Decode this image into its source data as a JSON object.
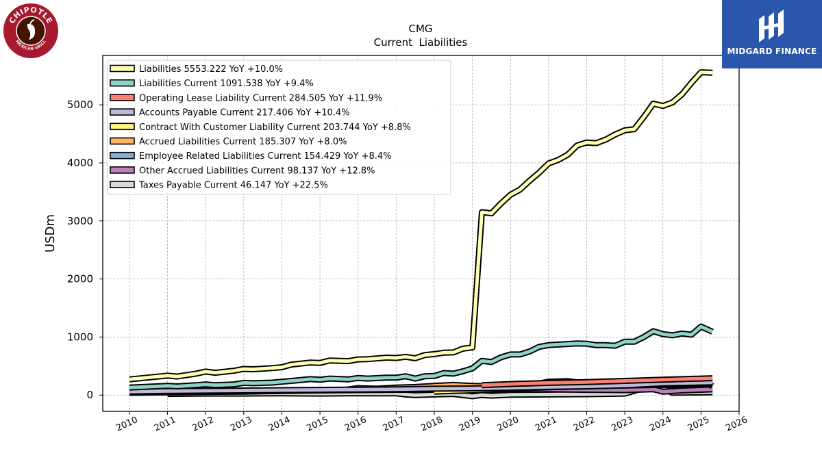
{
  "brands": {
    "left_logo_text": "CHIPOTLE",
    "left_logo_subtext": "MEXICAN GRILL",
    "right_logo_text": "MIDGARD FINANCE"
  },
  "colors": {
    "liabilities": "#ffffb3",
    "liabilities_current": "#8dd3c7",
    "operating_lease": "#fb8072",
    "accounts_payable": "#bebada",
    "contract_with_customer": "#fff57a",
    "accrued_liabilities": "#fdb462",
    "employee_related": "#80b1d3",
    "other_accrued": "#bc80bd",
    "taxes_payable": "#d9d9d9",
    "brand_blue": "#2a56ac",
    "chipotle_red": "#a6192e"
  },
  "chart_data": {
    "type": "line",
    "title": "CMG",
    "subtitle": "Current  Liabilities",
    "xlabel": "",
    "ylabel": "USDm",
    "xlim": [
      2009.3,
      2026.0
    ],
    "ylim": [
      -280,
      5850
    ],
    "x_ticks": [
      2010,
      2011,
      2012,
      2013,
      2014,
      2015,
      2016,
      2017,
      2018,
      2019,
      2020,
      2021,
      2022,
      2023,
      2024,
      2025,
      2026
    ],
    "y_ticks": [
      0,
      1000,
      2000,
      3000,
      4000,
      5000
    ],
    "grid": true,
    "legend_position": "top-left",
    "series": [
      {
        "name": "Liabilities",
        "legend": "Liabilities  5553.222 YoY +10.0%",
        "color_key": "liabilities",
        "points": [
          [
            2010.0,
            270
          ],
          [
            2011.0,
            335
          ],
          [
            2011.25,
            320
          ],
          [
            2011.75,
            370
          ],
          [
            2012.0,
            405
          ],
          [
            2012.25,
            385
          ],
          [
            2012.75,
            420
          ],
          [
            2013.0,
            450
          ],
          [
            2013.25,
            445
          ],
          [
            2013.75,
            465
          ],
          [
            2014.0,
            480
          ],
          [
            2014.25,
            525
          ],
          [
            2014.75,
            560
          ],
          [
            2015.0,
            555
          ],
          [
            2015.25,
            595
          ],
          [
            2015.75,
            585
          ],
          [
            2016.0,
            615
          ],
          [
            2016.25,
            620
          ],
          [
            2016.75,
            645
          ],
          [
            2017.0,
            640
          ],
          [
            2017.25,
            660
          ],
          [
            2017.5,
            635
          ],
          [
            2017.75,
            690
          ],
          [
            2018.0,
            705
          ],
          [
            2018.25,
            730
          ],
          [
            2018.5,
            735
          ],
          [
            2018.75,
            800
          ],
          [
            2019.0,
            820
          ],
          [
            2019.25,
            3150
          ],
          [
            2019.5,
            3130
          ],
          [
            2019.75,
            3300
          ],
          [
            2020.0,
            3450
          ],
          [
            2020.25,
            3540
          ],
          [
            2020.5,
            3690
          ],
          [
            2020.75,
            3830
          ],
          [
            2021.0,
            3990
          ],
          [
            2021.25,
            4050
          ],
          [
            2021.5,
            4140
          ],
          [
            2021.75,
            4300
          ],
          [
            2022.0,
            4350
          ],
          [
            2022.25,
            4340
          ],
          [
            2022.5,
            4400
          ],
          [
            2022.75,
            4490
          ],
          [
            2023.0,
            4560
          ],
          [
            2023.25,
            4580
          ],
          [
            2023.5,
            4790
          ],
          [
            2023.75,
            5020
          ],
          [
            2024.0,
            4980
          ],
          [
            2024.25,
            5040
          ],
          [
            2024.5,
            5180
          ],
          [
            2024.75,
            5380
          ],
          [
            2025.0,
            5560
          ],
          [
            2025.3,
            5553
          ]
        ]
      },
      {
        "name": "Liabilities Current",
        "legend": "Liabilities Current  1091.538 YoY +9.4%",
        "color_key": "liabilities_current",
        "points": [
          [
            2010.0,
            130
          ],
          [
            2011.0,
            160
          ],
          [
            2011.25,
            150
          ],
          [
            2011.75,
            170
          ],
          [
            2012.0,
            185
          ],
          [
            2012.25,
            170
          ],
          [
            2012.75,
            185
          ],
          [
            2013.0,
            210
          ],
          [
            2013.25,
            205
          ],
          [
            2013.75,
            215
          ],
          [
            2014.0,
            230
          ],
          [
            2014.25,
            245
          ],
          [
            2014.75,
            275
          ],
          [
            2015.0,
            265
          ],
          [
            2015.25,
            285
          ],
          [
            2015.75,
            270
          ],
          [
            2016.0,
            295
          ],
          [
            2016.25,
            285
          ],
          [
            2016.75,
            300
          ],
          [
            2017.0,
            300
          ],
          [
            2017.25,
            325
          ],
          [
            2017.5,
            285
          ],
          [
            2017.75,
            325
          ],
          [
            2018.0,
            330
          ],
          [
            2018.25,
            380
          ],
          [
            2018.5,
            370
          ],
          [
            2018.75,
            410
          ],
          [
            2019.0,
            460
          ],
          [
            2019.25,
            590
          ],
          [
            2019.5,
            570
          ],
          [
            2019.75,
            650
          ],
          [
            2020.0,
            700
          ],
          [
            2020.25,
            700
          ],
          [
            2020.5,
            750
          ],
          [
            2020.75,
            830
          ],
          [
            2021.0,
            860
          ],
          [
            2021.25,
            870
          ],
          [
            2021.5,
            880
          ],
          [
            2021.75,
            890
          ],
          [
            2022.0,
            885
          ],
          [
            2022.25,
            860
          ],
          [
            2022.5,
            860
          ],
          [
            2022.75,
            850
          ],
          [
            2023.0,
            920
          ],
          [
            2023.25,
            920
          ],
          [
            2023.5,
            1000
          ],
          [
            2023.75,
            1100
          ],
          [
            2024.0,
            1050
          ],
          [
            2024.25,
            1030
          ],
          [
            2024.5,
            1060
          ],
          [
            2024.75,
            1040
          ],
          [
            2025.0,
            1180
          ],
          [
            2025.3,
            1091
          ]
        ]
      },
      {
        "name": "Operating Lease Liability Current",
        "legend": "Operating Lease Liability Current  284.505 YoY +11.9%",
        "color_key": "operating_lease",
        "points": [
          [
            2019.25,
            170
          ],
          [
            2020.0,
            190
          ],
          [
            2021.0,
            210
          ],
          [
            2022.0,
            225
          ],
          [
            2023.0,
            245
          ],
          [
            2024.0,
            265
          ],
          [
            2025.3,
            290
          ]
        ]
      },
      {
        "name": "Accounts Payable Current",
        "legend": "Accounts Payable Current  217.406 YoY +10.4%",
        "color_key": "accounts_payable",
        "points": [
          [
            2010.0,
            60
          ],
          [
            2011.0,
            70
          ],
          [
            2012.0,
            75
          ],
          [
            2013.0,
            80
          ],
          [
            2014.0,
            85
          ],
          [
            2015.0,
            90
          ],
          [
            2016.0,
            95
          ],
          [
            2017.0,
            100
          ],
          [
            2018.0,
            110
          ],
          [
            2019.0,
            115
          ],
          [
            2020.0,
            125
          ],
          [
            2021.0,
            140
          ],
          [
            2022.0,
            150
          ],
          [
            2023.0,
            165
          ],
          [
            2024.0,
            200
          ],
          [
            2025.3,
            217
          ]
        ]
      },
      {
        "name": "Contract With Customer Liability Current",
        "legend": "Contract With Customer Liability Current  203.744 YoY +8.8%",
        "color_key": "contract_with_customer",
        "points": [
          [
            2018.0,
            60
          ],
          [
            2018.5,
            70
          ],
          [
            2019.0,
            80
          ],
          [
            2020.0,
            110
          ],
          [
            2021.0,
            135
          ],
          [
            2022.0,
            150
          ],
          [
            2023.0,
            170
          ],
          [
            2024.0,
            190
          ],
          [
            2025.3,
            204
          ]
        ]
      },
      {
        "name": "Accrued Liabilities Current",
        "legend": "Accrued Liabilities Current  185.307 YoY +8.0%",
        "color_key": "accrued_liabilities",
        "points": [
          [
            2015.75,
            100
          ],
          [
            2016.0,
            120
          ],
          [
            2016.5,
            110
          ],
          [
            2017.0,
            130
          ],
          [
            2017.5,
            140
          ],
          [
            2018.0,
            160
          ],
          [
            2018.5,
            175
          ],
          [
            2019.0,
            160
          ],
          [
            2019.5,
            150
          ],
          [
            2020.0,
            140
          ],
          [
            2021.0,
            150
          ],
          [
            2022.0,
            155
          ],
          [
            2023.0,
            165
          ],
          [
            2024.0,
            175
          ],
          [
            2025.3,
            185
          ]
        ]
      },
      {
        "name": "Employee Related Liabilities Current",
        "legend": "Employee Related Liabilities Current  154.429 YoY +8.4%",
        "color_key": "employee_related",
        "points": [
          [
            2010.0,
            40
          ],
          [
            2011.0,
            45
          ],
          [
            2012.0,
            55
          ],
          [
            2013.0,
            60
          ],
          [
            2014.0,
            70
          ],
          [
            2015.0,
            80
          ],
          [
            2016.0,
            85
          ],
          [
            2017.0,
            90
          ],
          [
            2018.0,
            95
          ],
          [
            2019.0,
            110
          ],
          [
            2019.5,
            120
          ],
          [
            2020.0,
            150
          ],
          [
            2020.5,
            170
          ],
          [
            2021.0,
            230
          ],
          [
            2021.5,
            240
          ],
          [
            2022.0,
            200
          ],
          [
            2022.5,
            180
          ],
          [
            2023.0,
            200
          ],
          [
            2023.5,
            180
          ],
          [
            2023.75,
            250
          ],
          [
            2024.0,
            200
          ],
          [
            2024.25,
            170
          ],
          [
            2024.5,
            230
          ],
          [
            2024.75,
            200
          ],
          [
            2025.0,
            270
          ],
          [
            2025.3,
            154
          ]
        ]
      },
      {
        "name": "Other Accrued Liabilities Current",
        "legend": "Other Accrued Liabilities Current  98.137 YoY +12.8%",
        "color_key": "other_accrued",
        "points": [
          [
            2018.0,
            70
          ],
          [
            2018.5,
            80
          ],
          [
            2019.0,
            90
          ],
          [
            2020.0,
            95
          ],
          [
            2021.0,
            100
          ],
          [
            2022.0,
            90
          ],
          [
            2023.0,
            85
          ],
          [
            2023.75,
            100
          ],
          [
            2024.0,
            60
          ],
          [
            2024.5,
            80
          ],
          [
            2025.3,
            98
          ]
        ]
      },
      {
        "name": "Taxes Payable Current",
        "legend": "Taxes Payable Current  46.147 YoY +22.5%",
        "color_key": "taxes_payable",
        "points": [
          [
            2011.0,
            20
          ],
          [
            2012.0,
            25
          ],
          [
            2013.0,
            25
          ],
          [
            2014.0,
            30
          ],
          [
            2015.0,
            25
          ],
          [
            2016.0,
            30
          ],
          [
            2017.0,
            30
          ],
          [
            2017.25,
            10
          ],
          [
            2017.5,
            0
          ],
          [
            2018.0,
            10
          ],
          [
            2018.5,
            20
          ],
          [
            2019.0,
            -20
          ],
          [
            2019.25,
            0
          ],
          [
            2019.5,
            -10
          ],
          [
            2020.0,
            5
          ],
          [
            2021.0,
            10
          ],
          [
            2022.0,
            15
          ],
          [
            2023.0,
            25
          ],
          [
            2023.5,
            120
          ],
          [
            2023.75,
            200
          ],
          [
            2024.0,
            120
          ],
          [
            2024.25,
            40
          ],
          [
            2025.3,
            46
          ]
        ]
      }
    ]
  }
}
